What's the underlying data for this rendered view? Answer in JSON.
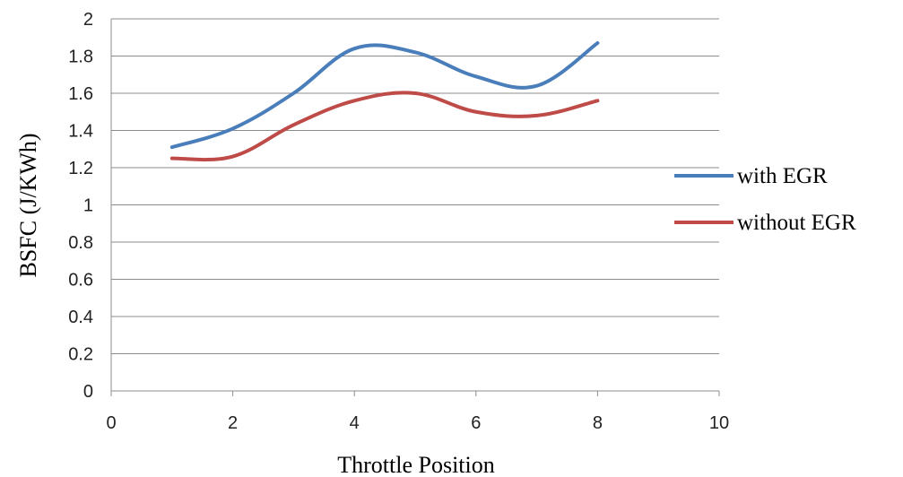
{
  "chart_data": {
    "type": "line",
    "xlabel": "Throttle Position",
    "ylabel": "BSFC (J/KWh)",
    "xlim": [
      0,
      10
    ],
    "ylim": [
      0,
      2
    ],
    "xticks": [
      0,
      2,
      4,
      6,
      8,
      10
    ],
    "yticks": [
      0,
      0.2,
      0.4,
      0.6,
      0.8,
      1,
      1.2,
      1.4,
      1.6,
      1.8,
      2
    ],
    "grid": "horizontal",
    "legend_position": "right",
    "series": [
      {
        "name": "with EGR",
        "color": "#4a7ebb",
        "x": [
          1,
          2,
          3,
          4,
          5,
          6,
          7,
          8
        ],
        "y": [
          1.31,
          1.41,
          1.6,
          1.84,
          1.82,
          1.69,
          1.64,
          1.87
        ]
      },
      {
        "name": "without EGR",
        "color": "#be4b48",
        "x": [
          1,
          2,
          3,
          4,
          5,
          6,
          7,
          8
        ],
        "y": [
          1.25,
          1.26,
          1.43,
          1.56,
          1.6,
          1.5,
          1.48,
          1.56
        ]
      }
    ]
  }
}
